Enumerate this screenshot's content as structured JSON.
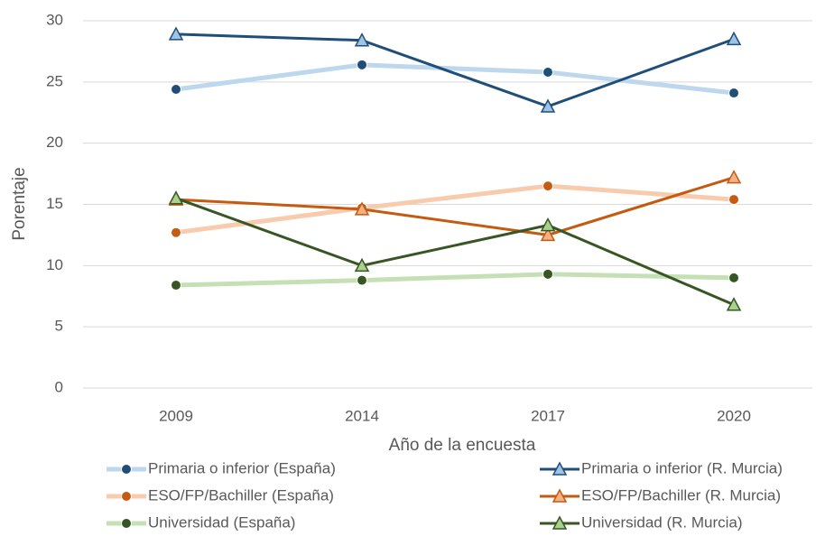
{
  "chart_data": {
    "type": "line",
    "x_label": "Año de la encuesta",
    "y_label": "Porentaje",
    "categories": [
      "2009",
      "2014",
      "2017",
      "2020"
    ],
    "ylim": [
      0,
      30
    ],
    "yticks": [
      0,
      5,
      10,
      15,
      20,
      25,
      30
    ],
    "grid": true,
    "series": [
      {
        "name": "Primaria o inferior (España)",
        "color": "#bdd7ee",
        "marker": "circle",
        "marker_fill": "#1f4e79",
        "values": [
          24.4,
          26.4,
          25.8,
          24.1
        ]
      },
      {
        "name": "Primaria o inferior (R. Murcia)",
        "color": "#1f4e79",
        "marker": "triangle",
        "marker_fill": "#9dc3e6",
        "values": [
          28.9,
          28.4,
          23.0,
          28.5
        ]
      },
      {
        "name": "ESO/FP/Bachiller (España)",
        "color": "#f8cbad",
        "marker": "circle",
        "marker_fill": "#c55a11",
        "values": [
          12.7,
          14.7,
          16.5,
          15.4
        ]
      },
      {
        "name": "ESO/FP/Bachiller (R. Murcia)",
        "color": "#c55a11",
        "marker": "triangle",
        "marker_fill": "#f4b183",
        "values": [
          15.4,
          14.6,
          12.5,
          17.2
        ]
      },
      {
        "name": "Universidad (España)",
        "color": "#c5e0b4",
        "marker": "circle",
        "marker_fill": "#375623",
        "values": [
          8.4,
          8.8,
          9.3,
          9.0
        ]
      },
      {
        "name": "Universidad (R. Murcia)",
        "color": "#375623",
        "marker": "triangle",
        "marker_fill": "#a9d18e",
        "values": [
          15.5,
          10.0,
          13.3,
          6.8
        ]
      }
    ]
  }
}
